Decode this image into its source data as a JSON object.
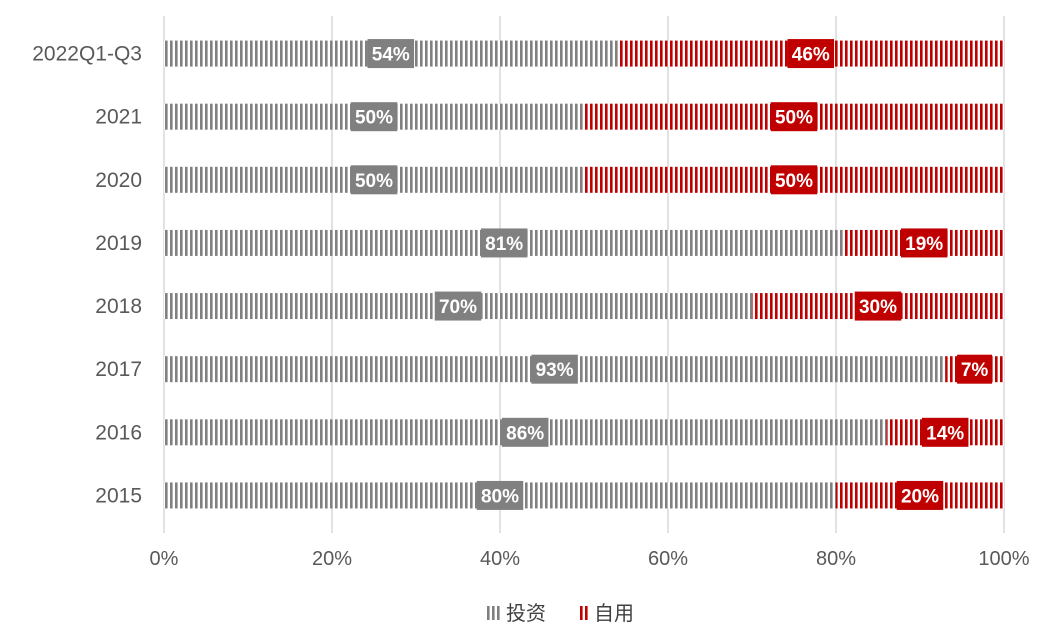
{
  "chart_data": {
    "type": "bar",
    "orientation": "horizontal",
    "stacked": true,
    "percent": true,
    "categories": [
      "2022Q1-Q3",
      "2021",
      "2020",
      "2019",
      "2018",
      "2017",
      "2016",
      "2015"
    ],
    "series": [
      {
        "name": "投资",
        "color": "#808080",
        "values": [
          54,
          50,
          50,
          81,
          70,
          93,
          86,
          80
        ],
        "labels": [
          "54%",
          "50%",
          "50%",
          "81%",
          "70%",
          "93%",
          "86%",
          "80%"
        ]
      },
      {
        "name": "自用",
        "color": "#C00000",
        "values": [
          46,
          50,
          50,
          19,
          30,
          7,
          14,
          20
        ],
        "labels": [
          "46%",
          "50%",
          "50%",
          "19%",
          "30%",
          "7%",
          "14%",
          "20%"
        ]
      }
    ],
    "xlim": [
      0,
      100
    ],
    "xticks": [
      "0%",
      "20%",
      "40%",
      "60%",
      "80%",
      "100%"
    ],
    "grid": true,
    "legend": "bottom",
    "title": "",
    "xlabel": "",
    "ylabel": ""
  }
}
